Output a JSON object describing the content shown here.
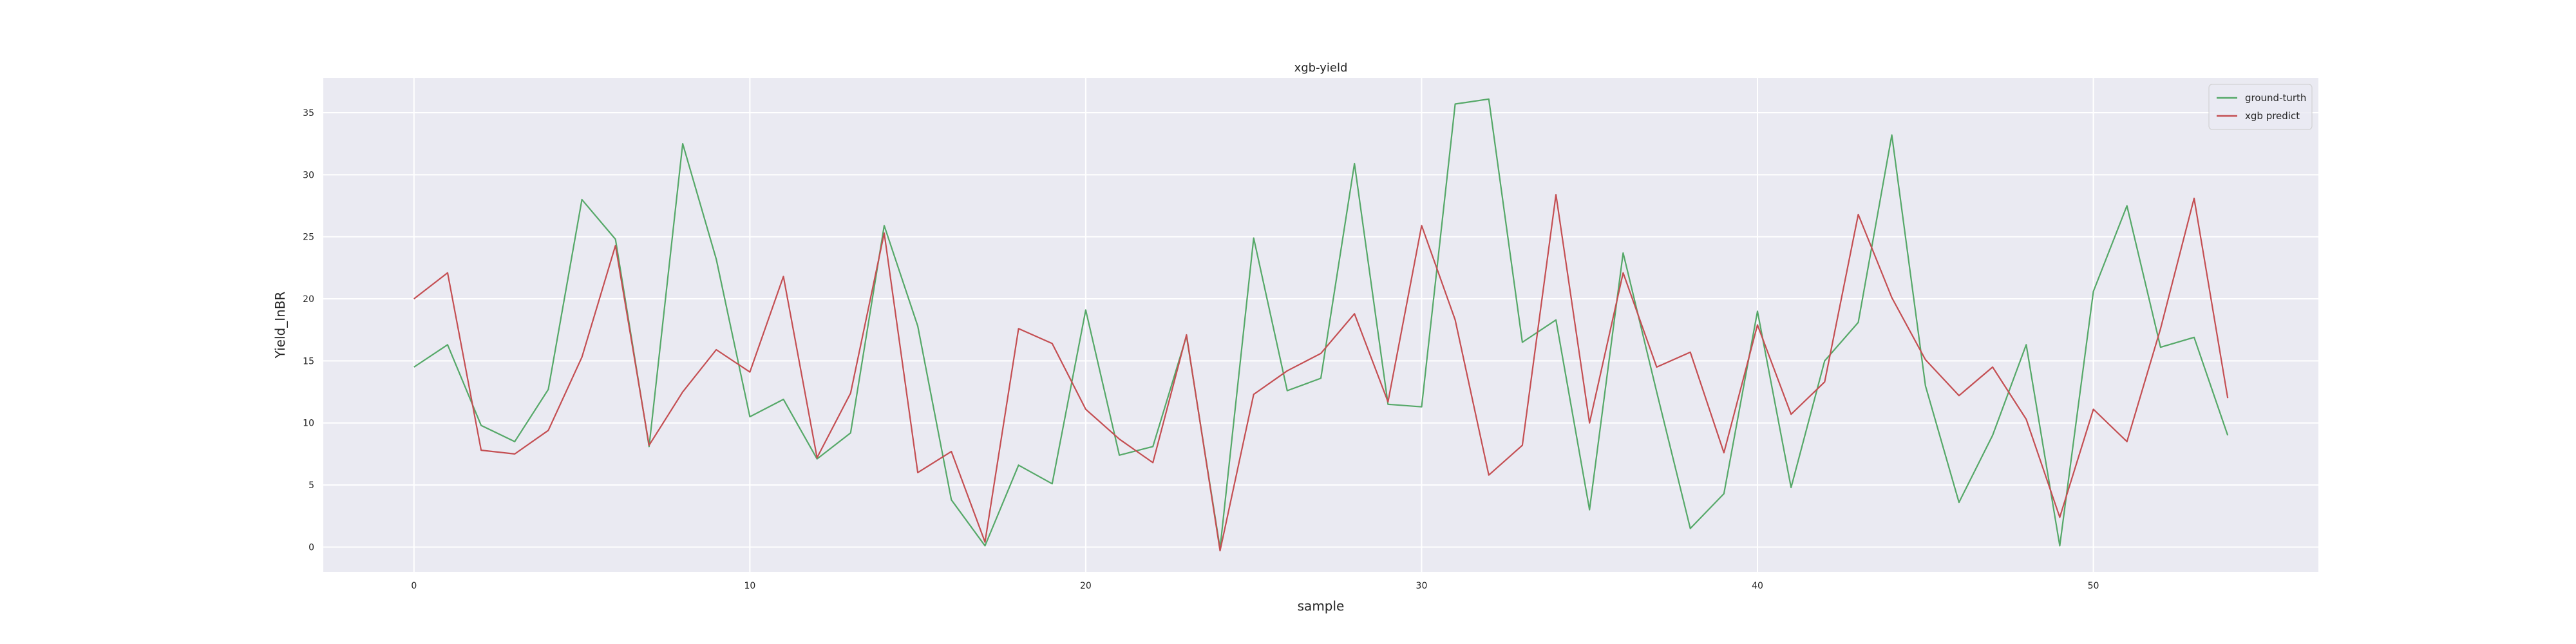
{
  "chart_data": {
    "type": "line",
    "title": "xgb-yield",
    "xlabel": "sample",
    "ylabel": "Yield_InBR",
    "xlim": [
      -2.7,
      56.7
    ],
    "ylim": [
      -2.0,
      37.8
    ],
    "xticks": [
      0,
      10,
      20,
      30,
      40,
      50
    ],
    "yticks": [
      0,
      5,
      10,
      15,
      20,
      25,
      30,
      35
    ],
    "grid": true,
    "legend_position": "top-right",
    "x": [
      0,
      1,
      2,
      3,
      4,
      5,
      6,
      7,
      8,
      9,
      10,
      11,
      12,
      13,
      14,
      15,
      16,
      17,
      18,
      19,
      20,
      21,
      22,
      23,
      24,
      25,
      26,
      27,
      28,
      29,
      30,
      31,
      32,
      33,
      34,
      35,
      36,
      37,
      38,
      39,
      40,
      41,
      42,
      43,
      44,
      45,
      46,
      47,
      48,
      49,
      50,
      51,
      52,
      53,
      54
    ],
    "series": [
      {
        "name": "ground-turth",
        "color": "#55a868",
        "values": [
          14.5,
          16.3,
          9.8,
          8.5,
          12.7,
          28.0,
          24.8,
          8.1,
          32.5,
          23.2,
          10.5,
          11.9,
          7.1,
          9.2,
          25.9,
          17.8,
          3.8,
          0.1,
          6.6,
          5.1,
          19.1,
          7.4,
          8.1,
          17.0,
          -0.1,
          24.9,
          12.6,
          13.6,
          30.9,
          11.5,
          11.3,
          35.7,
          36.1,
          16.5,
          18.3,
          3.0,
          23.7,
          12.5,
          1.5,
          4.3,
          19.0,
          4.8,
          15.0,
          18.1,
          33.2,
          13.0,
          3.6,
          9.0,
          16.3,
          0.1,
          20.6,
          27.5,
          16.1,
          16.9,
          9.0
        ]
      },
      {
        "name": "xgb predict",
        "color": "#c44e52",
        "values": [
          20.0,
          22.1,
          7.8,
          7.5,
          9.4,
          15.3,
          24.3,
          8.2,
          12.5,
          15.9,
          14.1,
          21.8,
          7.2,
          12.4,
          25.3,
          6.0,
          7.7,
          0.4,
          17.6,
          16.4,
          11.1,
          8.7,
          6.8,
          17.1,
          -0.3,
          12.3,
          14.2,
          15.6,
          18.8,
          11.7,
          25.9,
          18.3,
          5.8,
          8.2,
          28.4,
          10.0,
          22.1,
          14.5,
          15.7,
          7.6,
          17.9,
          10.7,
          13.3,
          26.8,
          20.1,
          15.1,
          12.2,
          14.5,
          10.3,
          2.4,
          11.1,
          8.5,
          17.6,
          28.1,
          12.0
        ]
      }
    ]
  }
}
